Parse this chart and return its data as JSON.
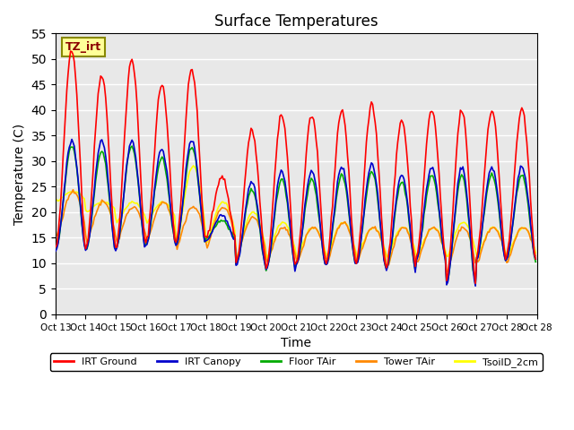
{
  "title": "Surface Temperatures",
  "xlabel": "Time",
  "ylabel": "Temperature (C)",
  "ylim": [
    0,
    55
  ],
  "xlim": [
    0,
    375
  ],
  "bg_color": "#e8e8e8",
  "grid_color": "white",
  "tz_label": "TZ_irt",
  "legend": [
    {
      "label": "IRT Ground",
      "color": "#ff0000"
    },
    {
      "label": "IRT Canopy",
      "color": "#0000cc"
    },
    {
      "label": "Floor TAir",
      "color": "#00aa00"
    },
    {
      "label": "Tower TAir",
      "color": "#ff8800"
    },
    {
      "label": "TsoilD_2cm",
      "color": "#ffff00"
    }
  ],
  "xtick_labels": [
    "Oct 13",
    "Oct 14",
    "Oct 15",
    "Oct 16",
    "Oct 17",
    "Oct 18",
    "Oct 19",
    "Oct 20",
    "Oct 21",
    "Oct 22",
    "Oct 23",
    "Oct 24",
    "Oct 25",
    "Oct 26",
    "Oct 27",
    "Oct 28"
  ],
  "n_days": 16,
  "pts_per_day": 24
}
